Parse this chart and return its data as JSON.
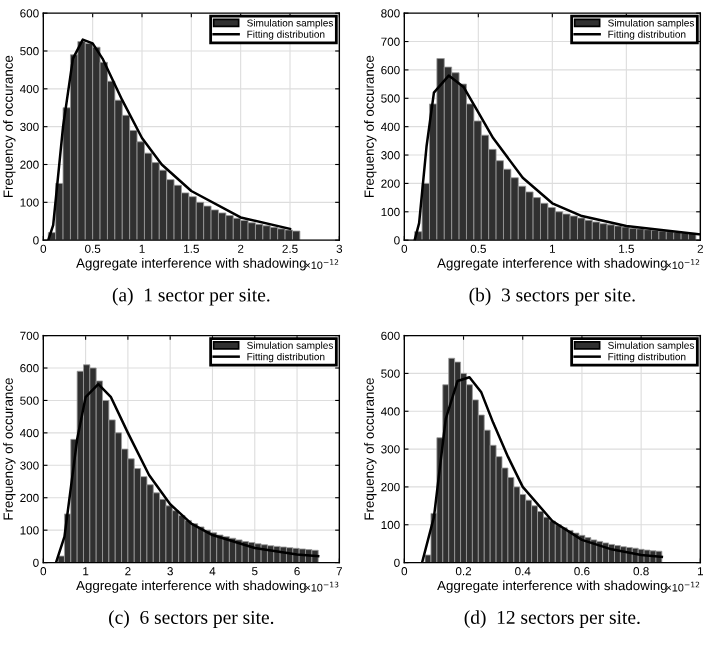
{
  "chart_data": [
    {
      "type": "histogram",
      "title": "(a)  1 sector per site.",
      "xlabel": "Aggregate interference with shadowing",
      "ylabel": "Frequency of occurance",
      "annotations": [
        "×10$^{−12}$"
      ],
      "bins": [
        0.05,
        0.125,
        0.2,
        0.275,
        0.35,
        0.425,
        0.5,
        0.575,
        0.65,
        0.725,
        0.8,
        0.875,
        0.95,
        1.025,
        1.1,
        1.175,
        1.25,
        1.325,
        1.4,
        1.475,
        1.55,
        1.625,
        1.7,
        1.775,
        1.85,
        1.925,
        2.0,
        2.075,
        2.15,
        2.225,
        2.3,
        2.375,
        2.45,
        2.525,
        2.6
      ],
      "series": [
        {
          "name": "Simulation samples",
          "color": "#303030",
          "values": [
            20,
            150,
            350,
            490,
            525,
            520,
            510,
            470,
            420,
            370,
            330,
            290,
            260,
            230,
            205,
            185,
            160,
            145,
            125,
            115,
            100,
            90,
            80,
            72,
            65,
            58,
            52,
            46,
            42,
            38,
            34,
            30,
            27,
            24
          ]
        },
        {
          "name": "Fitting distribution",
          "type": "line",
          "color": "#000000",
          "x": [
            0.05,
            0.1,
            0.2,
            0.3,
            0.4,
            0.5,
            0.6,
            0.8,
            1.0,
            1.2,
            1.5,
            2.0,
            2.5
          ],
          "values": [
            0,
            40,
            300,
            480,
            530,
            520,
            480,
            370,
            270,
            200,
            130,
            60,
            30
          ]
        }
      ],
      "xlim": [
        0,
        3
      ],
      "xticks": [
        0,
        0.5,
        1,
        1.5,
        2,
        2.5,
        3
      ],
      "ylim": [
        0,
        600
      ],
      "yticks": [
        0,
        100,
        200,
        300,
        400,
        500,
        600
      ],
      "grid": true,
      "legend": "top right"
    },
    {
      "type": "histogram",
      "title": "(b)  3 sectors per site.",
      "xlabel": "Aggregate interference with shadowing",
      "ylabel": "Frequency of occurance",
      "annotations": [
        "×10$^{−12}$"
      ],
      "bins": [
        0.07,
        0.12,
        0.17,
        0.22,
        0.27,
        0.32,
        0.37,
        0.42,
        0.47,
        0.52,
        0.57,
        0.62,
        0.67,
        0.72,
        0.77,
        0.82,
        0.87,
        0.92,
        0.97,
        1.02,
        1.07,
        1.12,
        1.17,
        1.22,
        1.27,
        1.32,
        1.37,
        1.42,
        1.47,
        1.52,
        1.57,
        1.62,
        1.67,
        1.72,
        1.77,
        1.82,
        1.87,
        1.92,
        1.97
      ],
      "series": [
        {
          "name": "Simulation samples",
          "color": "#303030",
          "values": [
            30,
            200,
            480,
            640,
            610,
            590,
            550,
            480,
            420,
            370,
            320,
            280,
            250,
            220,
            190,
            170,
            150,
            130,
            115,
            100,
            92,
            85,
            78,
            70,
            64,
            58,
            54,
            50,
            46,
            42,
            40,
            37,
            35,
            32,
            30,
            28,
            26,
            24
          ]
        },
        {
          "name": "Fitting distribution",
          "type": "line",
          "color": "#000000",
          "x": [
            0.07,
            0.1,
            0.15,
            0.2,
            0.3,
            0.4,
            0.5,
            0.6,
            0.8,
            1.0,
            1.2,
            1.5,
            2.0
          ],
          "values": [
            0,
            60,
            330,
            520,
            580,
            540,
            450,
            360,
            220,
            130,
            85,
            50,
            20
          ]
        }
      ],
      "xlim": [
        0,
        2
      ],
      "xticks": [
        0,
        0.5,
        1,
        1.5,
        2
      ],
      "ylim": [
        0,
        800
      ],
      "yticks": [
        0,
        100,
        200,
        300,
        400,
        500,
        600,
        700,
        800
      ],
      "grid": true,
      "legend": "top right"
    },
    {
      "type": "histogram",
      "title": "(c)  6 sectors per site.",
      "xlabel": "Aggregate interference with shadowing",
      "ylabel": "Frequency of occurance",
      "annotations": [
        "×10$^{−13}$"
      ],
      "bins": [
        0.35,
        0.5,
        0.65,
        0.8,
        0.95,
        1.1,
        1.25,
        1.4,
        1.55,
        1.7,
        1.85,
        2.0,
        2.15,
        2.3,
        2.45,
        2.6,
        2.75,
        2.9,
        3.05,
        3.2,
        3.35,
        3.5,
        3.65,
        3.8,
        3.95,
        4.1,
        4.25,
        4.4,
        4.55,
        4.7,
        4.85,
        5.0,
        5.15,
        5.3,
        5.45,
        5.6,
        5.75,
        5.9,
        6.05,
        6.2,
        6.35,
        6.5
      ],
      "series": [
        {
          "name": "Simulation samples",
          "color": "#303030",
          "values": [
            20,
            150,
            380,
            590,
            610,
            600,
            560,
            500,
            440,
            400,
            350,
            320,
            290,
            265,
            240,
            215,
            195,
            175,
            160,
            145,
            130,
            120,
            110,
            100,
            92,
            85,
            80,
            75,
            70,
            65,
            62,
            58,
            55,
            52,
            50,
            48,
            46,
            44,
            42,
            40,
            38
          ]
        },
        {
          "name": "Fitting distribution",
          "type": "line",
          "color": "#000000",
          "x": [
            0.3,
            0.5,
            0.8,
            1.0,
            1.3,
            1.6,
            2.0,
            2.5,
            3.0,
            3.5,
            4.0,
            5.0,
            6.0,
            6.5
          ],
          "values": [
            0,
            80,
            380,
            510,
            550,
            510,
            400,
            270,
            180,
            120,
            85,
            45,
            25,
            20
          ]
        }
      ],
      "xlim": [
        0,
        7
      ],
      "xticks": [
        0,
        1,
        2,
        3,
        4,
        5,
        6,
        7
      ],
      "ylim": [
        0,
        700
      ],
      "yticks": [
        0,
        100,
        200,
        300,
        400,
        500,
        600,
        700
      ],
      "grid": true,
      "legend": "top right"
    },
    {
      "type": "histogram",
      "title": "(d)  12 sectors per site.",
      "xlabel": "Aggregate interference with shadowing",
      "ylabel": "Frequency of occurance",
      "annotations": [
        "×10$^{−12}$"
      ],
      "bins": [
        0.07,
        0.09,
        0.11,
        0.13,
        0.15,
        0.17,
        0.19,
        0.21,
        0.23,
        0.25,
        0.27,
        0.29,
        0.31,
        0.33,
        0.35,
        0.37,
        0.39,
        0.41,
        0.43,
        0.45,
        0.47,
        0.49,
        0.51,
        0.53,
        0.55,
        0.57,
        0.59,
        0.61,
        0.63,
        0.65,
        0.67,
        0.69,
        0.71,
        0.73,
        0.75,
        0.77,
        0.79,
        0.81,
        0.83,
        0.85,
        0.87
      ],
      "series": [
        {
          "name": "Simulation samples",
          "color": "#303030",
          "values": [
            20,
            130,
            330,
            470,
            540,
            530,
            500,
            470,
            430,
            390,
            350,
            310,
            280,
            250,
            225,
            200,
            180,
            165,
            150,
            135,
            120,
            110,
            100,
            92,
            85,
            78,
            72,
            66,
            60,
            56,
            52,
            48,
            45,
            42,
            40,
            38,
            35,
            33,
            31,
            30
          ]
        },
        {
          "name": "Fitting distribution",
          "type": "line",
          "color": "#000000",
          "x": [
            0.06,
            0.1,
            0.14,
            0.18,
            0.22,
            0.26,
            0.3,
            0.35,
            0.4,
            0.5,
            0.6,
            0.7,
            0.8,
            0.87
          ],
          "values": [
            0,
            120,
            380,
            480,
            490,
            450,
            370,
            280,
            200,
            110,
            60,
            35,
            20,
            15
          ]
        }
      ],
      "xlim": [
        0,
        1
      ],
      "xticks": [
        0,
        0.2,
        0.4,
        0.6,
        0.8,
        1
      ],
      "ylim": [
        0,
        600
      ],
      "yticks": [
        0,
        100,
        200,
        300,
        400,
        500,
        600
      ],
      "grid": true,
      "legend": "top right"
    }
  ]
}
